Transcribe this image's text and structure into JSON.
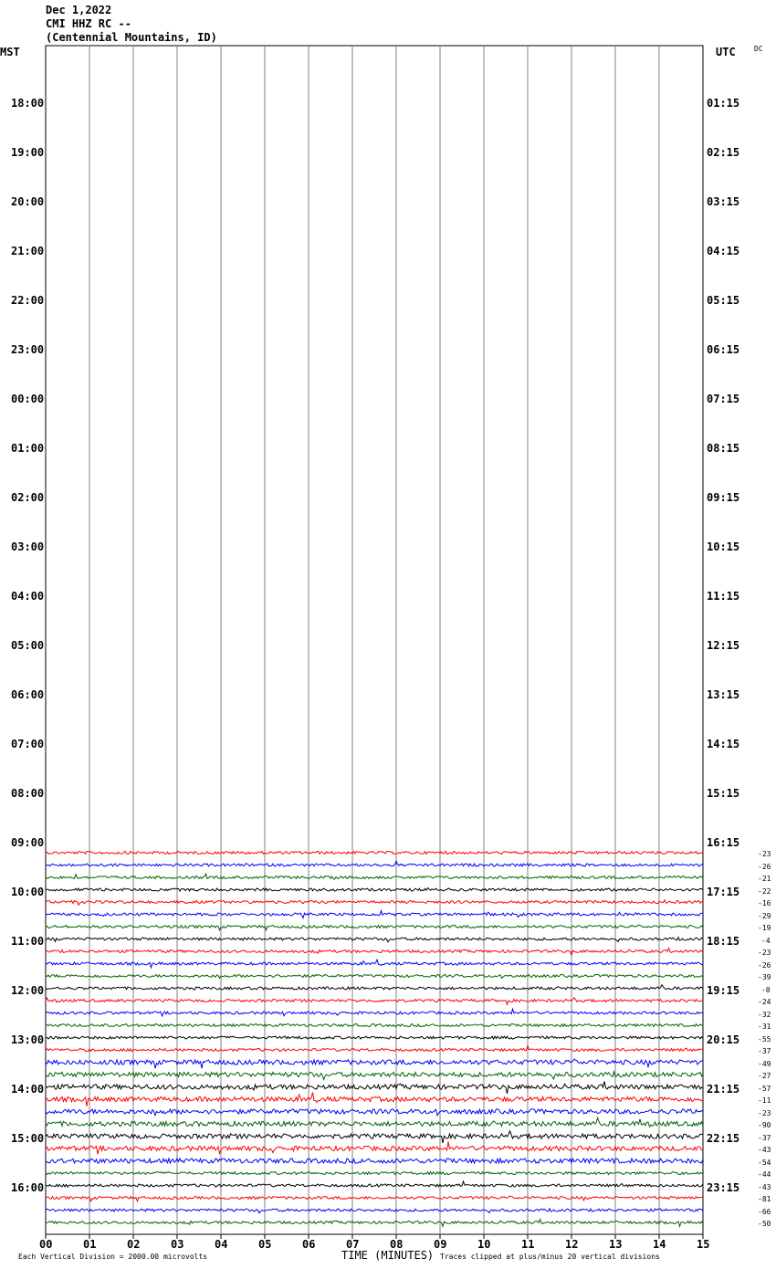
{
  "header": {
    "date": "Dec 1,2022",
    "station": "CMI HHZ RC --",
    "location": "(Centennial Mountains, ID)"
  },
  "left_tz": "MST",
  "right_tz": "UTC",
  "corner_tag": "DC",
  "footer": {
    "left_note": "Each Vertical Division = 2000.00 microvolts",
    "xlabel": "TIME (MINUTES)",
    "right_note": "Traces clipped at plus/minus 20 vertical divisions"
  },
  "colors": {
    "trace_cycle": [
      "#ff0000",
      "#0000ff",
      "#006400",
      "#000000"
    ],
    "grid": "#808080"
  },
  "chart_data": {
    "type": "line",
    "title": "",
    "xlabel": "TIME (MINUTES)",
    "ylabel": "",
    "x_ticks": [
      "00",
      "01",
      "02",
      "03",
      "04",
      "05",
      "06",
      "07",
      "08",
      "09",
      "10",
      "11",
      "12",
      "13",
      "14",
      "15"
    ],
    "xlim": [
      0,
      15
    ],
    "left_hour_labels": [
      "18:00",
      "19:00",
      "20:00",
      "21:00",
      "22:00",
      "23:00",
      "00:00",
      "01:00",
      "02:00",
      "03:00",
      "04:00",
      "05:00",
      "06:00",
      "07:00",
      "08:00",
      "09:00",
      "10:00",
      "11:00",
      "12:00",
      "13:00",
      "14:00",
      "15:00",
      "16:00"
    ],
    "right_hour_labels": [
      "01:15",
      "02:15",
      "03:15",
      "04:15",
      "05:15",
      "06:15",
      "07:15",
      "08:15",
      "09:15",
      "10:15",
      "11:15",
      "12:15",
      "13:15",
      "14:15",
      "15:15",
      "16:15",
      "17:15",
      "18:15",
      "19:15",
      "20:15",
      "21:15",
      "22:15",
      "23:15"
    ],
    "trace_offsets": [
      "-23",
      "-26",
      "-21",
      "-22",
      "-16",
      "-29",
      "-19",
      "-4",
      "-23",
      "-26",
      "-39",
      "-0",
      "-24",
      "-32",
      "-31",
      "-55",
      "-37",
      "-49",
      "-27",
      "-57",
      "-11",
      "-23",
      "-90",
      "-37",
      "-43",
      "-54",
      "-44",
      "-43",
      "-81",
      "-66",
      "-50"
    ]
  }
}
